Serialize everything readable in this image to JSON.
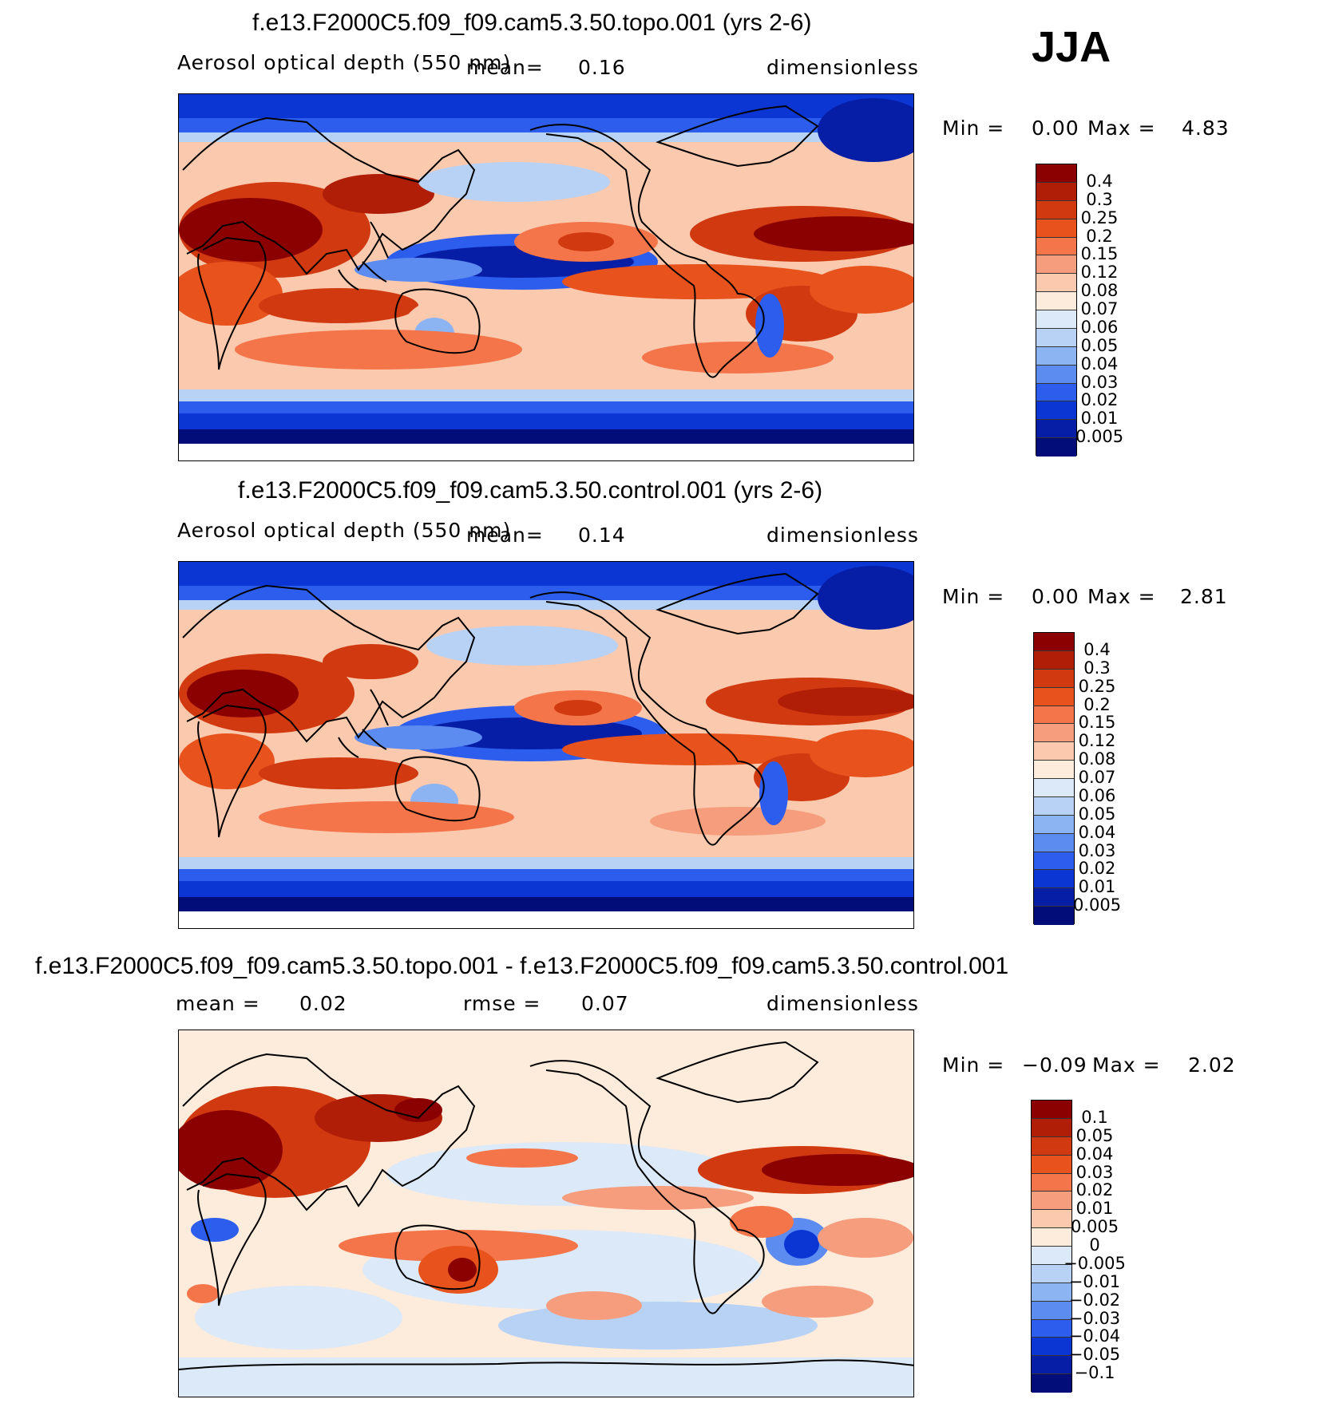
{
  "season": "JJA",
  "panels": [
    {
      "title": "f.e13.F2000C5.f09_f09.cam5.3.50.topo.001 (yrs 2-6)",
      "variable": "Aerosol optical depth (550 nm)",
      "mean_label": "mean=",
      "mean_value": "0.16",
      "units": "dimensionless",
      "min_label": "Min =",
      "min_value": "0.00",
      "max_label": "Max =",
      "max_value": "4.83",
      "colorbar_labels": [
        "0.4",
        "0.3",
        "0.25",
        "0.2",
        "0.15",
        "0.12",
        "0.08",
        "0.07",
        "0.06",
        "0.05",
        "0.04",
        "0.03",
        "0.02",
        "0.01",
        "0.005"
      ]
    },
    {
      "title": "f.e13.F2000C5.f09_f09.cam5.3.50.control.001 (yrs 2-6)",
      "variable": "Aerosol optical depth (550 nm)",
      "mean_label": "mean=",
      "mean_value": "0.14",
      "units": "dimensionless",
      "min_label": "Min =",
      "min_value": "0.00",
      "max_label": "Max =",
      "max_value": "2.81",
      "colorbar_labels": [
        "0.4",
        "0.3",
        "0.25",
        "0.2",
        "0.15",
        "0.12",
        "0.08",
        "0.07",
        "0.06",
        "0.05",
        "0.04",
        "0.03",
        "0.02",
        "0.01",
        "0.005"
      ]
    },
    {
      "title": "f.e13.F2000C5.f09_f09.cam5.3.50.topo.001 - f.e13.F2000C5.f09_f09.cam5.3.50.control.001",
      "mean_label": "mean =",
      "mean_value": "0.02",
      "rmse_label": "rmse =",
      "rmse_value": "0.07",
      "units": "dimensionless",
      "min_label": "Min =",
      "min_value": "−0.09",
      "max_label": "Max =",
      "max_value": "2.02",
      "colorbar_labels": [
        "0.1",
        "0.05",
        "0.04",
        "0.03",
        "0.02",
        "0.01",
        "0.005",
        "0",
        "−0.005",
        "−0.01",
        "−0.02",
        "−0.03",
        "−0.04",
        "−0.05",
        "−0.1"
      ]
    }
  ],
  "colors": {
    "colorbar_ramp": [
      "#8b0000",
      "#b01e07",
      "#d13a11",
      "#e8531d",
      "#f47549",
      "#f59d7c",
      "#fbc9ae",
      "#fdebdc",
      "#dbe9f9",
      "#b7d2f5",
      "#8db4f2",
      "#5d8cf0",
      "#2d5ded",
      "#0c36d4",
      "#061ea6",
      "#020d7a"
    ],
    "diff_ramp": [
      "#8b0000",
      "#b01e07",
      "#d13a11",
      "#e8531d",
      "#f47549",
      "#f59d7c",
      "#fbc9ae",
      "#fdebdc",
      "#dbe9f9",
      "#b7d2f5",
      "#8db4f2",
      "#5d8cf0",
      "#2d5ded",
      "#0c36d4",
      "#061ea6",
      "#020d7a"
    ]
  }
}
